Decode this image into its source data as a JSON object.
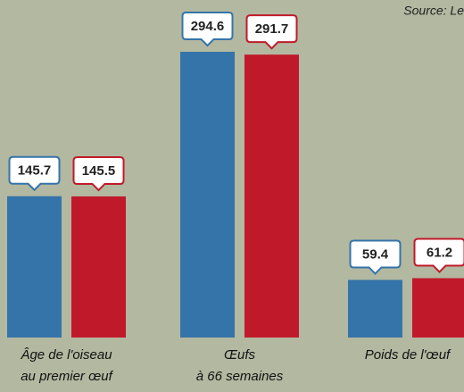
{
  "chart_data": {
    "type": "bar",
    "source": "Source: Le",
    "categories": [
      [
        "Âge de l'oiseau",
        "au premier œuf"
      ],
      [
        "Œufs",
        "à 66 semaines"
      ],
      [
        "Poids de l'œuf"
      ]
    ],
    "series": [
      {
        "color": "#3574a9",
        "values": [
          145.7,
          294.6,
          59.4
        ]
      },
      {
        "color": "#c01a2a",
        "values": [
          145.5,
          291.7,
          61.2
        ]
      }
    ],
    "ylim": [
      0,
      348
    ]
  }
}
